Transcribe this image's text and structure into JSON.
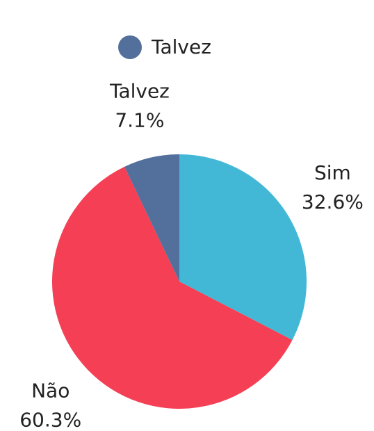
{
  "chart_data": {
    "type": "pie",
    "categories": [
      "Sim",
      "Não",
      "Talvez"
    ],
    "values": [
      32.6,
      60.3,
      7.1
    ],
    "value_labels": [
      "32.6%",
      "60.3%",
      "7.1%"
    ],
    "colors": [
      "#42b8d6",
      "#f43f55",
      "#52709b"
    ]
  }
}
